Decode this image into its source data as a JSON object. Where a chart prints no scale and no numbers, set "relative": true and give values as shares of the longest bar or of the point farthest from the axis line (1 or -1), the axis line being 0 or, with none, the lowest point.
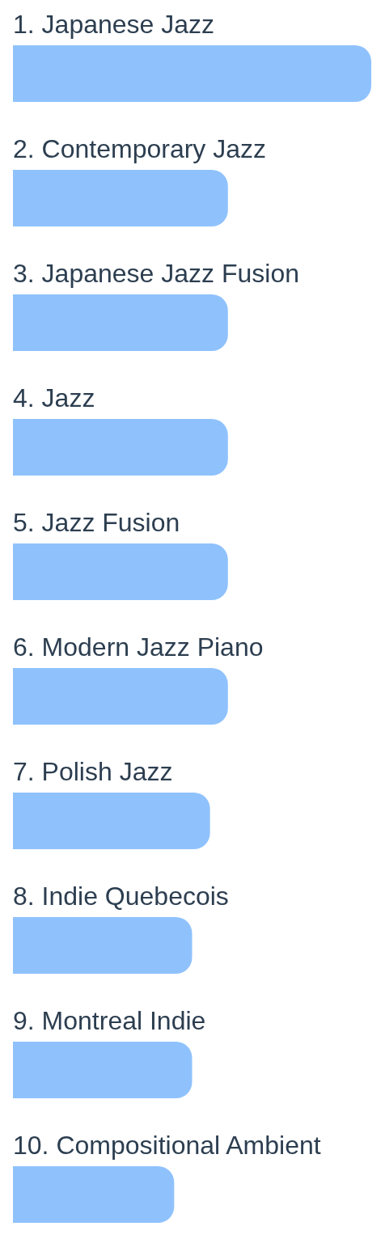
{
  "chart_data": {
    "type": "bar",
    "orientation": "horizontal",
    "relative": true,
    "color": "#8fc2fd",
    "categories": [
      "1. Japanese Jazz",
      "2. Contemporary Jazz",
      "3. Japanese Jazz Fusion",
      "4. Jazz",
      "5. Jazz Fusion",
      "6. Modern Jazz Piano",
      "7. Polish Jazz",
      "8. Indie Quebecois",
      "9. Montreal Indie",
      "10. Compositional Ambient"
    ],
    "values": [
      1,
      0.6,
      0.6,
      0.6,
      0.6,
      0.6,
      0.55,
      0.5,
      0.5,
      0.45
    ]
  }
}
